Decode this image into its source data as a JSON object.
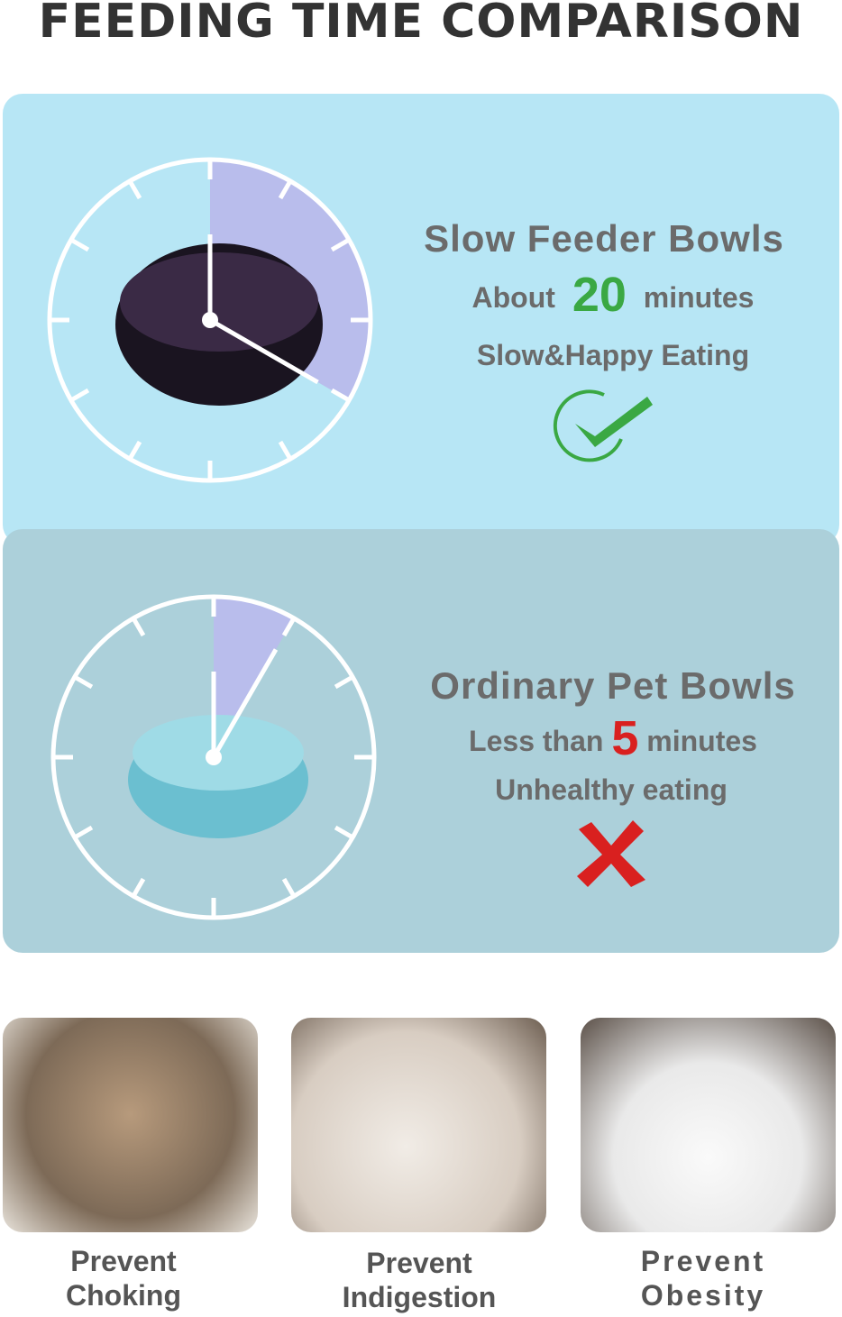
{
  "title": "FEEDING TIME COMPARISON",
  "slow": {
    "heading": "Slow Feeder Bowls",
    "prefix": "About",
    "number": "20",
    "suffix": "minutes",
    "tagline": "Slow&Happy Eating",
    "icon": "check-circle-icon",
    "accent": "#3aa843",
    "minutes": 20
  },
  "ordinary": {
    "heading": "Ordinary Pet Bowls",
    "prefix": "Less than",
    "number": "5",
    "suffix": "minutes",
    "tagline": "Unhealthy eating",
    "icon": "red-x-icon",
    "accent": "#d9201f",
    "minutes": 5
  },
  "benefits": [
    {
      "line1": "Prevent",
      "line2": "Choking"
    },
    {
      "line1": "Prevent",
      "line2": "Indigestion"
    },
    {
      "line1": "Prevent",
      "line2": "Obesity"
    }
  ]
}
